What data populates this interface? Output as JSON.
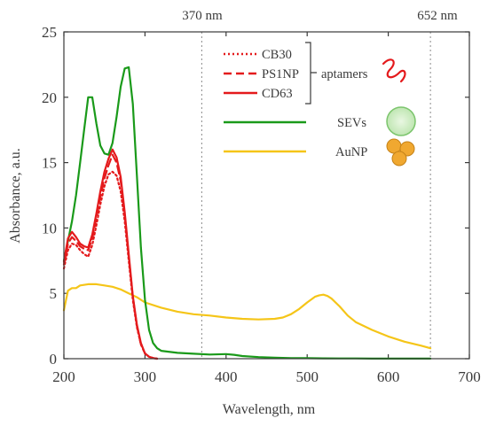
{
  "chart_data": {
    "type": "line",
    "xlabel": "Wavelength, nm",
    "ylabel": "Absorbance, a.u.",
    "xlim": [
      200,
      700
    ],
    "ylim": [
      0,
      25
    ],
    "xticks": [
      200,
      300,
      400,
      500,
      600,
      700
    ],
    "yticks": [
      0,
      5,
      10,
      15,
      20,
      25
    ],
    "grid": false,
    "legend_position": "top-right",
    "annotations": {
      "vlines": [
        {
          "x": 370,
          "label": "370 nm"
        },
        {
          "x": 652,
          "label": "652 nm"
        }
      ],
      "bracket_label": "aptamers"
    },
    "series": [
      {
        "name": "CB30",
        "color": "#e41a1c",
        "style": "dotted",
        "x": [
          200,
          205,
          210,
          215,
          220,
          225,
          230,
          235,
          240,
          245,
          250,
          255,
          260,
          265,
          270,
          275,
          280,
          285,
          290,
          295,
          300,
          305,
          310,
          315
        ],
        "y": [
          6.9,
          8.3,
          8.8,
          8.7,
          8.3,
          8.0,
          7.8,
          8.7,
          10.2,
          11.8,
          13.2,
          14.1,
          14.3,
          14.0,
          12.8,
          10.5,
          7.5,
          4.5,
          2.4,
          1.1,
          0.4,
          0.15,
          0.05,
          0.0
        ]
      },
      {
        "name": "PS1NP",
        "color": "#e41a1c",
        "style": "dashed",
        "x": [
          200,
          205,
          210,
          215,
          220,
          225,
          230,
          235,
          240,
          245,
          250,
          255,
          260,
          265,
          270,
          275,
          280,
          285,
          290,
          295,
          300,
          305,
          310,
          315
        ],
        "y": [
          7.2,
          8.8,
          9.3,
          9.0,
          8.6,
          8.4,
          8.3,
          9.2,
          10.8,
          12.4,
          13.8,
          14.8,
          15.6,
          15.0,
          13.6,
          11.0,
          7.8,
          4.7,
          2.5,
          1.1,
          0.4,
          0.15,
          0.05,
          0.0
        ]
      },
      {
        "name": "CD63",
        "color": "#e41a1c",
        "style": "solid",
        "x": [
          200,
          205,
          210,
          215,
          220,
          225,
          230,
          235,
          240,
          245,
          250,
          255,
          260,
          265,
          270,
          275,
          280,
          285,
          290,
          295,
          300,
          305,
          310,
          315
        ],
        "y": [
          7.4,
          9.2,
          9.7,
          9.3,
          8.8,
          8.6,
          8.5,
          9.5,
          11.1,
          12.8,
          14.3,
          15.3,
          16.0,
          15.4,
          13.9,
          11.2,
          8.0,
          4.8,
          2.6,
          1.2,
          0.4,
          0.15,
          0.05,
          0.0
        ]
      },
      {
        "name": "SEVs",
        "color": "#1a9a1a",
        "style": "solid",
        "x": [
          200,
          205,
          210,
          215,
          220,
          225,
          230,
          235,
          240,
          245,
          250,
          255,
          260,
          265,
          270,
          275,
          280,
          285,
          290,
          295,
          300,
          305,
          310,
          315,
          320,
          340,
          360,
          380,
          400,
          410,
          420,
          440,
          460,
          480,
          500,
          520,
          540,
          560,
          580,
          600,
          620,
          640,
          652
        ],
        "y": [
          7.5,
          9.0,
          10.5,
          12.5,
          15.0,
          17.5,
          20.0,
          20.0,
          18.0,
          16.3,
          15.7,
          15.6,
          16.5,
          18.5,
          20.8,
          22.2,
          22.3,
          19.5,
          14.0,
          8.5,
          4.5,
          2.2,
          1.2,
          0.8,
          0.6,
          0.45,
          0.38,
          0.32,
          0.35,
          0.3,
          0.2,
          0.12,
          0.08,
          0.05,
          0.04,
          0.03,
          0.02,
          0.02,
          0.01,
          0.01,
          0.01,
          0.01,
          0.01
        ]
      },
      {
        "name": "AuNP",
        "color": "#f5c518",
        "style": "solid",
        "x": [
          200,
          205,
          210,
          215,
          220,
          230,
          240,
          250,
          260,
          270,
          280,
          290,
          300,
          320,
          340,
          360,
          380,
          400,
          420,
          440,
          460,
          470,
          480,
          490,
          500,
          510,
          515,
          520,
          525,
          530,
          540,
          550,
          560,
          580,
          600,
          620,
          640,
          652
        ],
        "y": [
          3.7,
          5.2,
          5.4,
          5.4,
          5.6,
          5.7,
          5.7,
          5.6,
          5.5,
          5.3,
          5.0,
          4.7,
          4.3,
          3.9,
          3.6,
          3.4,
          3.3,
          3.15,
          3.05,
          3.0,
          3.05,
          3.15,
          3.4,
          3.8,
          4.3,
          4.75,
          4.85,
          4.9,
          4.8,
          4.6,
          4.0,
          3.3,
          2.8,
          2.2,
          1.7,
          1.3,
          1.0,
          0.8
        ]
      }
    ]
  }
}
